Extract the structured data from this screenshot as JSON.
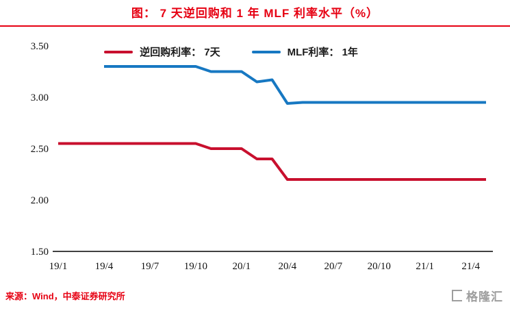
{
  "header": {
    "title": "图：  7 天逆回购和 1 年 MLF 利率水平（%）"
  },
  "footer": {
    "source": "来源：Wind，中泰证券研究所",
    "watermark": "格隆汇"
  },
  "colors": {
    "accent_red": "#e60012",
    "repo_line": "#c8102e",
    "mlf_line": "#1778c2",
    "watermark_gray": "#9e9e9e"
  },
  "chart_data": {
    "type": "line",
    "title": "7 天逆回购和 1 年 MLF 利率水平（%）",
    "xlabel": "",
    "ylabel": "",
    "grid": false,
    "legend_position": "top-center",
    "ylim": [
      1.5,
      3.5
    ],
    "yticks": [
      "3.50",
      "3.00",
      "2.50",
      "2.00",
      "1.50"
    ],
    "xtick_every": 3,
    "x": [
      "19/1",
      "19/2",
      "19/3",
      "19/4",
      "19/5",
      "19/6",
      "19/7",
      "19/8",
      "19/9",
      "19/10",
      "19/11",
      "19/12",
      "20/1",
      "20/2",
      "20/3",
      "20/4",
      "20/5",
      "20/6",
      "20/7",
      "20/8",
      "20/9",
      "20/10",
      "20/11",
      "20/12",
      "21/1",
      "21/2",
      "21/3",
      "21/4",
      "21/5"
    ],
    "series": [
      {
        "name": "逆回购利率： 7天",
        "color": "#c8102e",
        "values": [
          2.55,
          2.55,
          2.55,
          2.55,
          2.55,
          2.55,
          2.55,
          2.55,
          2.55,
          2.55,
          2.5,
          2.5,
          2.5,
          2.4,
          2.4,
          2.2,
          2.2,
          2.2,
          2.2,
          2.2,
          2.2,
          2.2,
          2.2,
          2.2,
          2.2,
          2.2,
          2.2,
          2.2,
          2.2
        ]
      },
      {
        "name": "MLF利率： 1年",
        "color": "#1778c2",
        "values": [
          null,
          null,
          null,
          3.3,
          3.3,
          3.3,
          3.3,
          3.3,
          3.3,
          3.3,
          3.25,
          3.25,
          3.25,
          3.15,
          3.17,
          2.94,
          2.95,
          2.95,
          2.95,
          2.95,
          2.95,
          2.95,
          2.95,
          2.95,
          2.95,
          2.95,
          2.95,
          2.95,
          2.95
        ]
      }
    ]
  }
}
